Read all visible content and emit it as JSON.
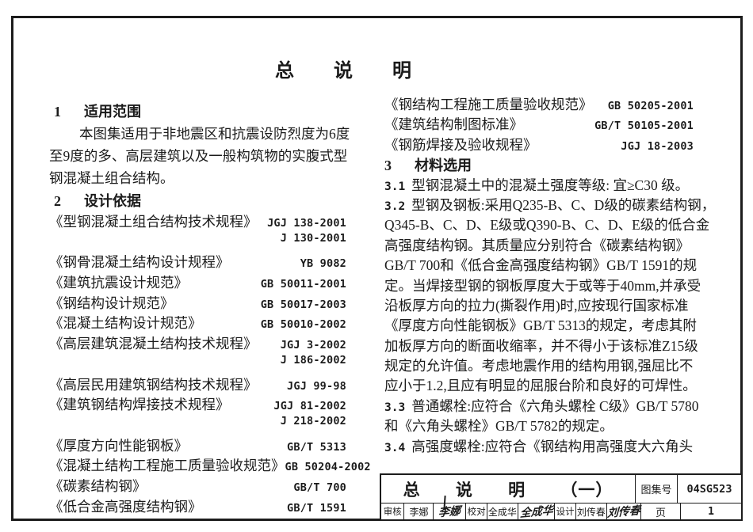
{
  "colors": {
    "ink": "#1c1c1c",
    "paper": "#ffffff"
  },
  "doc": {
    "title": "总 说 明"
  },
  "left": {
    "s1_num": "1",
    "s1_title": "适用范围",
    "s1_body": [
      "本图集适用于非地震区和抗震设防烈度为6度",
      "至9度的多、高层建筑以及一般构筑物的实腹式型",
      "钢混凝土组合结构。"
    ],
    "s2_num": "2",
    "s2_title": "设计依据",
    "standards": [
      {
        "name": "《型钢混凝土组合结构技术规程》",
        "code": "JGJ 138-2001"
      },
      {
        "name": "",
        "code": "J 130-2001"
      },
      {
        "name": "《钢骨混凝土结构设计规程》",
        "code": "YB 9082"
      },
      {
        "name": "《建筑抗震设计规范》",
        "code": "GB 50011-2001"
      },
      {
        "name": "《钢结构设计规范》",
        "code": "GB 50017-2003"
      },
      {
        "name": "《混凝土结构设计规范》",
        "code": "GB 50010-2002"
      },
      {
        "name": "《高层建筑混凝土结构技术规程》",
        "code": "JGJ 3-2002"
      },
      {
        "name": "",
        "code": "J 186-2002"
      },
      {
        "name": "《高层民用建筑钢结构技术规程》",
        "code": "JGJ 99-98"
      },
      {
        "name": "《建筑钢结构焊接技术规程》",
        "code": "JGJ 81-2002"
      },
      {
        "name": "",
        "code": "J 218-2002"
      },
      {
        "name": "《厚度方向性能钢板》",
        "code": "GB/T 5313"
      },
      {
        "name": "《混凝土结构工程施工质量验收规范》",
        "code": "GB 50204-2002"
      },
      {
        "name": "《碳素结构钢》",
        "code": "GB/T 700"
      },
      {
        "name": "《低合金高强度结构钢》",
        "code": "GB/T 1591"
      }
    ]
  },
  "right": {
    "standards": [
      {
        "name": "《钢结构工程施工质量验收规范》",
        "code": "GB 50205-2001"
      },
      {
        "name": "《建筑结构制图标准》",
        "code": "GB/T 50105-2001"
      },
      {
        "name": "《钢筋焊接及验收规程》",
        "code": "JGJ 18-2003"
      }
    ],
    "s3_num": "3",
    "s3_title": "材料选用",
    "lines": [
      {
        "num": "3.1",
        "text": "型钢混凝土中的混凝土强度等级: 宜≥C30 级。"
      },
      {
        "num": "3.2",
        "text": "型钢及钢板:采用Q235-B、C、D级的碳素结构钢，"
      },
      {
        "num": "",
        "text": "Q345-B、C、D、E级或Q390-B、C、D、E级的低合金"
      },
      {
        "num": "",
        "text": "高强度结构钢。其质量应分别符合《碳素结构钢》"
      },
      {
        "num": "",
        "text": "GB/T 700和《低合金高强度结构钢》GB/T 1591的规"
      },
      {
        "num": "",
        "text": "定。当焊接型钢的钢板厚度大于或等于40mm,并承受"
      },
      {
        "num": "",
        "text": "沿板厚方向的拉力(撕裂作用)时,应按现行国家标准"
      },
      {
        "num": "",
        "text": "《厚度方向性能钢板》GB/T 5313的规定，考虑其附"
      },
      {
        "num": "",
        "text": "加板厚方向的断面收缩率，并不得小于该标准Z15级"
      },
      {
        "num": "",
        "text": "规定的允许值。考虑地震作用的结构用钢,强屈比不"
      },
      {
        "num": "",
        "text": "应小于1.2,且应有明显的屈服台阶和良好的可焊性。"
      },
      {
        "num": "3.3",
        "text": "普通螺栓:应符合《六角头螺栓 C级》GB/T 5780"
      },
      {
        "num": "",
        "text": "和《六角头螺栓》GB/T 5782的规定。"
      },
      {
        "num": "3.4",
        "text": "高强度螺栓:应符合《钢结构用高强度大六角头"
      }
    ]
  },
  "title_block": {
    "title": "总 说 明 （一）",
    "atlas_label": "图集号",
    "atlas_no": "04SG523",
    "page_label": "页",
    "page_no": "1",
    "reviewer_label": "审核",
    "reviewer_name": "李娜",
    "reviewer_sig": "李娜",
    "checker_label": "校对",
    "checker_name": "全成华",
    "checker_sig": "全成华",
    "designer_label": "设计",
    "designer_name": "刘传春",
    "designer_sig": "刘传春"
  }
}
